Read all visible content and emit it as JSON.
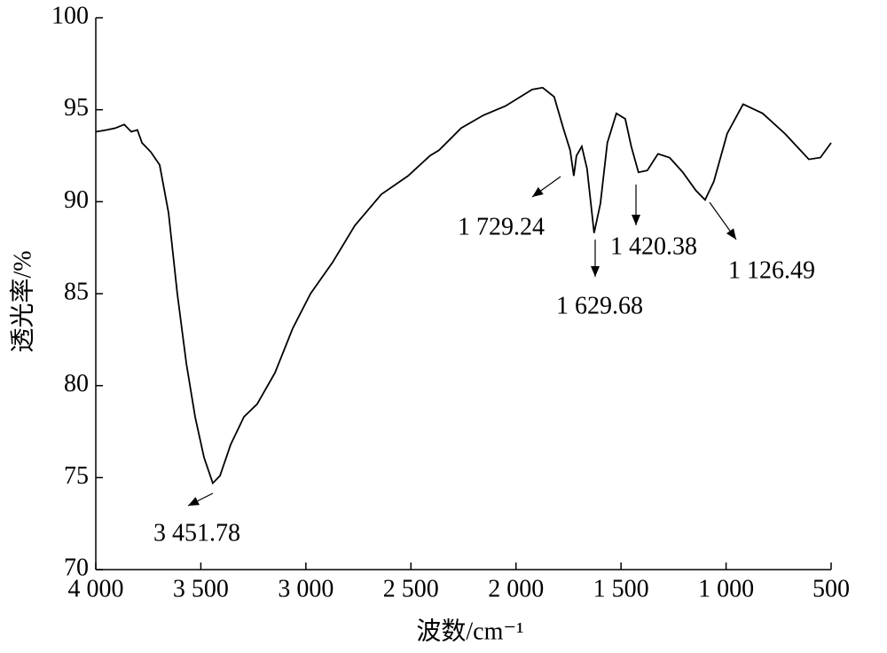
{
  "chart_data": {
    "type": "line",
    "x_label": "波数/cm⁻¹",
    "y_label": "透光率/%",
    "xlim": [
      4000,
      500
    ],
    "ylim": [
      70,
      100
    ],
    "xticks": [
      {
        "value": 4000,
        "label": "4 000"
      },
      {
        "value": 3500,
        "label": "3 500"
      },
      {
        "value": 3000,
        "label": "3 000"
      },
      {
        "value": 2500,
        "label": "2 500"
      },
      {
        "value": 2000,
        "label": "2 000"
      },
      {
        "value": 1500,
        "label": "1 500"
      },
      {
        "value": 1000,
        "label": "1 000"
      },
      500
    ],
    "yticks": [
      70,
      75,
      80,
      85,
      90,
      95,
      100
    ],
    "series": [
      {
        "color": "#000000",
        "x": [
          4000,
          3949,
          3907,
          3865,
          3831,
          3802,
          3780,
          3738,
          3696,
          3654,
          3612,
          3569,
          3527,
          3485,
          3443,
          3409,
          3358,
          3295,
          3232,
          3147,
          3063,
          2978,
          2873,
          2767,
          2641,
          2514,
          2409,
          2366,
          2261,
          2155,
          2050,
          1923,
          1873,
          1818,
          1775,
          1742,
          1725,
          1712,
          1687,
          1662,
          1628,
          1598,
          1565,
          1522,
          1480,
          1451,
          1417,
          1375,
          1324,
          1269,
          1206,
          1143,
          1100,
          1058,
          995,
          919,
          826,
          720,
          606,
          551,
          500
        ],
        "values": [
          93.8,
          93.9,
          94.0,
          94.2,
          93.8,
          93.9,
          93.2,
          92.7,
          92.0,
          89.4,
          85.0,
          81.2,
          78.3,
          76.1,
          74.7,
          75.1,
          76.8,
          78.3,
          79.0,
          80.7,
          83.1,
          85.0,
          86.7,
          88.7,
          90.4,
          91.4,
          92.5,
          92.8,
          94.0,
          94.7,
          95.2,
          96.1,
          96.2,
          95.7,
          94.0,
          92.8,
          91.4,
          92.5,
          93.0,
          91.8,
          88.3,
          89.9,
          93.2,
          94.8,
          94.5,
          93.0,
          91.6,
          91.7,
          92.6,
          92.4,
          91.6,
          90.6,
          90.1,
          91.1,
          93.7,
          95.3,
          94.8,
          93.7,
          92.3,
          92.4,
          93.2
        ]
      }
    ],
    "annotations": [
      "3 451.78",
      "1 729.24",
      "1 629.68",
      "1 420.38",
      "1 126.49"
    ]
  }
}
